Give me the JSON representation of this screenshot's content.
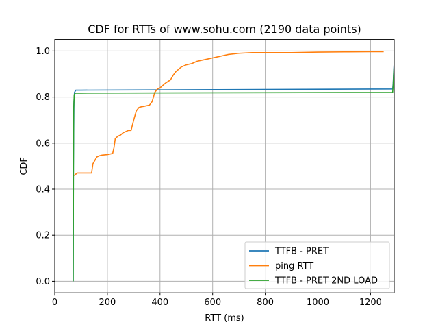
{
  "chart_data": {
    "type": "line",
    "title": "CDF for RTTs of www.sohu.com (2190 data points)",
    "xlabel": "RTT (ms)",
    "ylabel": "CDF",
    "xlim": [
      0,
      1290
    ],
    "ylim": [
      -0.05,
      1.05
    ],
    "xticks": [
      0,
      200,
      400,
      600,
      800,
      1000,
      1200
    ],
    "yticks": [
      0.0,
      0.2,
      0.4,
      0.6,
      0.8,
      1.0
    ],
    "xtick_labels": [
      "0",
      "200",
      "400",
      "600",
      "800",
      "1000",
      "1200"
    ],
    "ytick_labels": [
      "0.0",
      "0.2",
      "0.4",
      "0.6",
      "0.8",
      "1.0"
    ],
    "grid": true,
    "legend_position": "lower-right",
    "series": [
      {
        "name": "TTFB - PRET",
        "color": "#1f77b4",
        "x": [
          70,
          71,
          73,
          75,
          80,
          100,
          1284,
          1286,
          1288,
          1290
        ],
        "y": [
          0.0,
          0.5,
          0.78,
          0.82,
          0.83,
          0.83,
          0.835,
          0.86,
          0.91,
          0.95
        ]
      },
      {
        "name": "ping RTT",
        "color": "#ff7f0e",
        "x": [
          72,
          75,
          80,
          85,
          90,
          140,
          145,
          150,
          160,
          170,
          180,
          200,
          220,
          225,
          230,
          240,
          250,
          260,
          270,
          280,
          290,
          300,
          310,
          320,
          330,
          340,
          360,
          370,
          375,
          380,
          390,
          400,
          420,
          440,
          450,
          460,
          480,
          500,
          520,
          540,
          560,
          580,
          600,
          620,
          640,
          660,
          700,
          750,
          800,
          900,
          1000,
          1100,
          1200,
          1250
        ],
        "y": [
          0.46,
          0.46,
          0.465,
          0.47,
          0.47,
          0.47,
          0.51,
          0.52,
          0.54,
          0.545,
          0.548,
          0.55,
          0.555,
          0.58,
          0.62,
          0.63,
          0.635,
          0.645,
          0.65,
          0.655,
          0.655,
          0.7,
          0.74,
          0.755,
          0.758,
          0.76,
          0.765,
          0.78,
          0.8,
          0.82,
          0.835,
          0.84,
          0.86,
          0.875,
          0.895,
          0.91,
          0.93,
          0.94,
          0.945,
          0.955,
          0.96,
          0.965,
          0.97,
          0.975,
          0.98,
          0.985,
          0.99,
          0.993,
          0.993,
          0.993,
          0.995,
          0.996,
          0.997,
          0.997
        ]
      },
      {
        "name": "TTFB - PRET 2ND LOAD",
        "color": "#2ca02c",
        "x": [
          70,
          71,
          72,
          74,
          78,
          100,
          1284,
          1286,
          1288,
          1290
        ],
        "y": [
          0.0,
          0.45,
          0.75,
          0.81,
          0.817,
          0.817,
          0.82,
          0.85,
          0.9,
          0.94
        ]
      }
    ]
  }
}
